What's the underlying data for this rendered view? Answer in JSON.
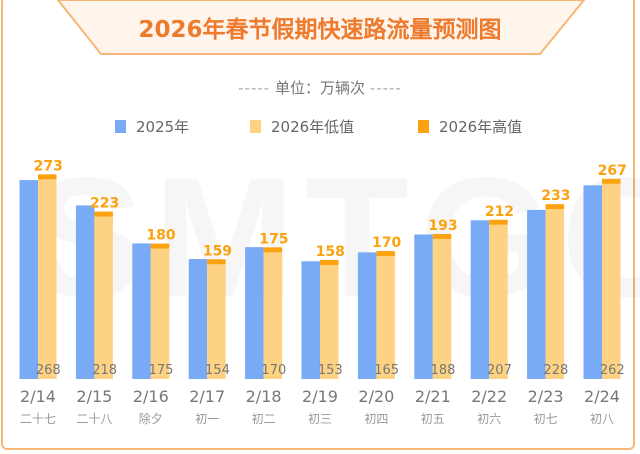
{
  "title": "2026年春节假期快速路流量预测图",
  "unit_label": "单位：万辆次",
  "watermark": "SMTGC",
  "colors": {
    "y2025": "#78aaf6",
    "low2026": "#fdd283",
    "high2026": "#fba20e",
    "title": "#ee7a2e"
  },
  "chart_data": {
    "type": "bar",
    "title": "2026年春节假期快速路流量预测图",
    "ylabel": "万辆次",
    "ylim": [
      0,
      300
    ],
    "legend_position": "top",
    "categories": [
      "2/14",
      "2/15",
      "2/16",
      "2/17",
      "2/18",
      "2/19",
      "2/20",
      "2/21",
      "2/22",
      "2/23",
      "2/24"
    ],
    "lunar": [
      "二十七",
      "二十八",
      "除夕",
      "初一",
      "初二",
      "初三",
      "初四",
      "初五",
      "初六",
      "初七",
      "初八"
    ],
    "series": [
      {
        "name": "2025年",
        "values": [
          267,
          233,
          182,
          161,
          177,
          158,
          170,
          194,
          213,
          227,
          260
        ]
      },
      {
        "name": "2026年低值",
        "values": [
          268,
          218,
          175,
          154,
          170,
          153,
          165,
          188,
          207,
          228,
          262
        ]
      },
      {
        "name": "2026年高值",
        "values": [
          273,
          223,
          180,
          159,
          175,
          158,
          170,
          193,
          212,
          233,
          267
        ]
      }
    ]
  }
}
